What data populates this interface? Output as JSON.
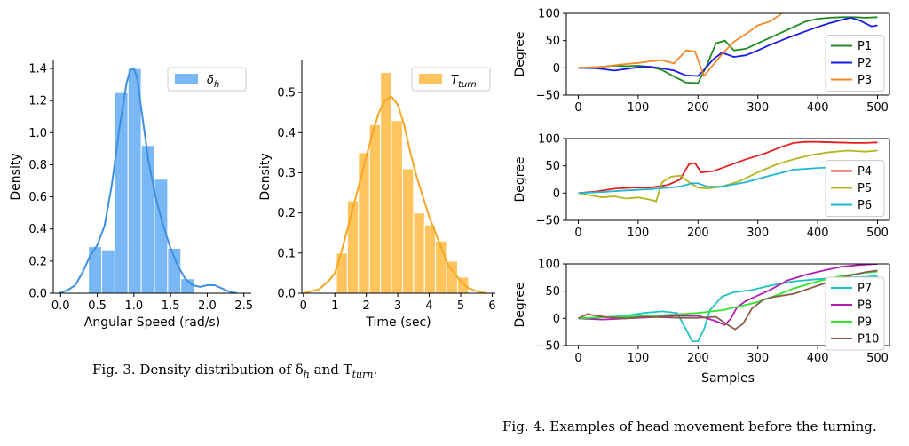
{
  "captions": {
    "fig3": "Fig. 3.  Density distribution of δ",
    "fig3_sub1": "h",
    "fig3_mid": " and T",
    "fig3_sub2": "turn",
    "fig3_end": ".",
    "fig4": "Fig. 4.  Examples of head movement before the turning."
  },
  "colors": {
    "hist_blue": "#7ab8f5",
    "kde_blue": "#3d8fe0",
    "hist_orange": "#ffc45e",
    "kde_orange": "#f5a623"
  },
  "chart_data": [
    {
      "type": "bar",
      "subtype": "histogram-with-kde",
      "legend": "δ",
      "legend_sub": "h",
      "legend_position": "top-right",
      "xlabel": "Angular Speed (rad/s)",
      "ylabel": "Density",
      "xlim": [
        -0.1,
        2.6
      ],
      "ylim": [
        0,
        1.45
      ],
      "xticks": [
        "0.0",
        "0.5",
        "1.0",
        "1.5",
        "2.0",
        "2.5"
      ],
      "xtick_values": [
        0,
        0.5,
        1.0,
        1.5,
        2.0,
        2.5
      ],
      "yticks": [
        "0.0",
        "0.2",
        "0.4",
        "0.6",
        "0.8",
        "1.0",
        "1.2",
        "1.4"
      ],
      "ytick_values": [
        0,
        0.2,
        0.4,
        0.6,
        0.8,
        1.0,
        1.2,
        1.4
      ],
      "bins": [
        {
          "x0": 0.38,
          "x1": 0.56,
          "value": 0.29
        },
        {
          "x0": 0.56,
          "x1": 0.74,
          "value": 0.27
        },
        {
          "x0": 0.74,
          "x1": 0.92,
          "value": 1.25
        },
        {
          "x0": 0.92,
          "x1": 1.1,
          "value": 1.4
        },
        {
          "x0": 1.1,
          "x1": 1.28,
          "value": 0.92
        },
        {
          "x0": 1.28,
          "x1": 1.46,
          "value": 0.71
        },
        {
          "x0": 1.46,
          "x1": 1.64,
          "value": 0.28
        },
        {
          "x0": 1.64,
          "x1": 1.82,
          "value": 0.09
        }
      ],
      "kde": {
        "x": [
          -0.02,
          0.1,
          0.2,
          0.3,
          0.4,
          0.5,
          0.6,
          0.7,
          0.8,
          0.9,
          0.95,
          1.0,
          1.05,
          1.1,
          1.2,
          1.3,
          1.4,
          1.5,
          1.6,
          1.7,
          1.8,
          1.9,
          2.0,
          2.1,
          2.2,
          2.3,
          2.4
        ],
        "y": [
          0.0,
          0.02,
          0.05,
          0.13,
          0.23,
          0.3,
          0.42,
          0.68,
          1.02,
          1.31,
          1.39,
          1.4,
          1.33,
          1.15,
          0.82,
          0.59,
          0.42,
          0.28,
          0.17,
          0.09,
          0.05,
          0.04,
          0.05,
          0.05,
          0.03,
          0.01,
          0.0
        ]
      }
    },
    {
      "type": "bar",
      "subtype": "histogram-with-kde",
      "legend": "T",
      "legend_sub": "turn",
      "legend_position": "top-right",
      "xlabel": "Time (sec)",
      "ylabel": "Density",
      "xlim": [
        -0.05,
        6.1
      ],
      "ylim": [
        0,
        0.58
      ],
      "xticks": [
        "0",
        "1",
        "2",
        "3",
        "4",
        "5",
        "6"
      ],
      "xtick_values": [
        0,
        1,
        2,
        3,
        4,
        5,
        6
      ],
      "yticks": [
        "0.0",
        "0.1",
        "0.2",
        "0.3",
        "0.4",
        "0.5"
      ],
      "ytick_values": [
        0,
        0.1,
        0.2,
        0.3,
        0.4,
        0.5
      ],
      "bins": [
        {
          "x0": 1.05,
          "x1": 1.4,
          "value": 0.1
        },
        {
          "x0": 1.4,
          "x1": 1.75,
          "value": 0.23
        },
        {
          "x0": 1.75,
          "x1": 2.1,
          "value": 0.35
        },
        {
          "x0": 2.1,
          "x1": 2.45,
          "value": 0.42
        },
        {
          "x0": 2.45,
          "x1": 2.8,
          "value": 0.55
        },
        {
          "x0": 2.8,
          "x1": 3.15,
          "value": 0.43
        },
        {
          "x0": 3.15,
          "x1": 3.5,
          "value": 0.31
        },
        {
          "x0": 3.5,
          "x1": 3.85,
          "value": 0.2
        },
        {
          "x0": 3.85,
          "x1": 4.2,
          "value": 0.17
        },
        {
          "x0": 4.2,
          "x1": 4.55,
          "value": 0.13
        },
        {
          "x0": 4.55,
          "x1": 4.9,
          "value": 0.08
        },
        {
          "x0": 4.9,
          "x1": 5.25,
          "value": 0.04
        }
      ],
      "kde": {
        "x": [
          0.0,
          0.5,
          0.8,
          1.0,
          1.2,
          1.4,
          1.6,
          1.8,
          2.0,
          2.2,
          2.4,
          2.6,
          2.8,
          3.0,
          3.2,
          3.4,
          3.6,
          3.8,
          4.0,
          4.2,
          4.4,
          4.6,
          4.8,
          5.0,
          5.2,
          5.4,
          5.6,
          5.8
        ],
        "y": [
          0.0,
          0.01,
          0.03,
          0.05,
          0.1,
          0.16,
          0.22,
          0.28,
          0.34,
          0.4,
          0.45,
          0.48,
          0.49,
          0.47,
          0.42,
          0.35,
          0.29,
          0.24,
          0.19,
          0.15,
          0.11,
          0.07,
          0.05,
          0.03,
          0.015,
          0.008,
          0.003,
          0.0
        ]
      }
    },
    {
      "type": "line",
      "ylabel": "Degree",
      "xlabel": "",
      "xlim": [
        -20,
        520
      ],
      "ylim": [
        -50,
        100
      ],
      "xticks": [
        "0",
        "100",
        "200",
        "300",
        "400",
        "500"
      ],
      "xtick_values": [
        0,
        100,
        200,
        300,
        400,
        500
      ],
      "yticks": [
        "−50",
        "0",
        "50",
        "100"
      ],
      "ytick_values": [
        -50,
        0,
        50,
        100
      ],
      "legend_position": "right",
      "series": [
        {
          "name": "P1",
          "color": "#1e8a1e",
          "x": [
            0,
            30,
            60,
            80,
            100,
            120,
            140,
            160,
            180,
            200,
            215,
            230,
            245,
            260,
            280,
            300,
            320,
            350,
            380,
            400,
            420,
            440,
            460,
            480,
            500
          ],
          "y": [
            0,
            1,
            4,
            3,
            4,
            2,
            -4,
            -16,
            -27,
            -28,
            5,
            45,
            50,
            32,
            35,
            45,
            55,
            70,
            85,
            90,
            92,
            93,
            93,
            92,
            93
          ]
        },
        {
          "name": "P2",
          "color": "#1a1ae6",
          "x": [
            0,
            30,
            60,
            80,
            100,
            120,
            140,
            160,
            180,
            200,
            210,
            225,
            240,
            260,
            280,
            300,
            320,
            350,
            380,
            400,
            420,
            440,
            455,
            470,
            490,
            500
          ],
          "y": [
            0,
            -1,
            -5,
            -2,
            1,
            2,
            -1,
            -5,
            -14,
            -15,
            -4,
            15,
            28,
            20,
            23,
            32,
            42,
            55,
            67,
            75,
            82,
            88,
            92,
            87,
            76,
            78
          ]
        },
        {
          "name": "P3",
          "color": "#f08a2a",
          "x": [
            0,
            40,
            70,
            100,
            120,
            140,
            160,
            180,
            195,
            210,
            225,
            240,
            260,
            280,
            300,
            320,
            335,
            340
          ],
          "y": [
            0,
            2,
            6,
            9,
            12,
            14,
            8,
            32,
            30,
            -15,
            5,
            25,
            48,
            62,
            78,
            85,
            96,
            100
          ]
        }
      ]
    },
    {
      "type": "line",
      "ylabel": "Degree",
      "xlabel": "",
      "xlim": [
        -20,
        520
      ],
      "ylim": [
        -50,
        100
      ],
      "xticks": [
        "0",
        "100",
        "200",
        "300",
        "400",
        "500"
      ],
      "xtick_values": [
        0,
        100,
        200,
        300,
        400,
        500
      ],
      "yticks": [
        "−50",
        "0",
        "50",
        "100"
      ],
      "ytick_values": [
        -50,
        0,
        50,
        100
      ],
      "legend_position": "right",
      "series": [
        {
          "name": "P4",
          "color": "#e61e1e",
          "x": [
            0,
            30,
            60,
            90,
            120,
            150,
            170,
            185,
            195,
            205,
            225,
            250,
            280,
            310,
            340,
            360,
            380,
            400,
            430,
            460,
            480,
            500
          ],
          "y": [
            0,
            3,
            8,
            10,
            10,
            15,
            25,
            53,
            55,
            38,
            40,
            50,
            62,
            72,
            85,
            92,
            94,
            94,
            93,
            92,
            92,
            93
          ]
        },
        {
          "name": "P5",
          "color": "#b5b51e",
          "x": [
            0,
            20,
            40,
            60,
            80,
            100,
            120,
            130,
            140,
            155,
            170,
            185,
            200,
            215,
            240,
            270,
            300,
            330,
            360,
            390,
            420,
            450,
            480,
            500
          ],
          "y": [
            0,
            -4,
            -8,
            -6,
            -10,
            -8,
            -12,
            -15,
            20,
            30,
            32,
            20,
            10,
            8,
            12,
            22,
            38,
            52,
            62,
            70,
            75,
            78,
            76,
            78
          ]
        },
        {
          "name": "P6",
          "color": "#1eb8d4",
          "x": [
            0,
            40,
            80,
            120,
            150,
            170,
            190,
            200,
            215,
            240,
            280,
            320,
            360,
            400,
            440,
            470,
            500
          ],
          "y": [
            0,
            2,
            5,
            7,
            10,
            12,
            18,
            18,
            12,
            12,
            20,
            32,
            43,
            46,
            48,
            50,
            48
          ]
        }
      ]
    },
    {
      "type": "line",
      "ylabel": "Degree",
      "xlabel": "Samples",
      "xlim": [
        -20,
        520
      ],
      "ylim": [
        -50,
        100
      ],
      "xticks": [
        "0",
        "100",
        "200",
        "300",
        "400",
        "500"
      ],
      "xtick_values": [
        0,
        100,
        200,
        300,
        400,
        500
      ],
      "yticks": [
        "−50",
        "0",
        "50",
        "100"
      ],
      "ytick_values": [
        -50,
        0,
        50,
        100
      ],
      "legend_position": "right",
      "series": [
        {
          "name": "P7",
          "color": "#1ec4c4",
          "x": [
            0,
            40,
            80,
            110,
            140,
            165,
            180,
            190,
            200,
            210,
            220,
            240,
            260,
            290,
            320,
            360,
            400,
            440,
            480,
            500
          ],
          "y": [
            0,
            2,
            5,
            10,
            13,
            10,
            -20,
            -42,
            -42,
            -20,
            15,
            40,
            48,
            52,
            60,
            68,
            72,
            75,
            76,
            78
          ]
        },
        {
          "name": "P8",
          "color": "#b21eb2",
          "x": [
            0,
            40,
            80,
            120,
            160,
            200,
            230,
            245,
            255,
            265,
            280,
            300,
            320,
            350,
            380,
            410,
            440,
            470,
            500
          ],
          "y": [
            0,
            -2,
            0,
            2,
            5,
            5,
            -5,
            -12,
            0,
            20,
            32,
            42,
            52,
            70,
            80,
            88,
            95,
            98,
            100
          ]
        },
        {
          "name": "P9",
          "color": "#2ee62e",
          "x": [
            0,
            40,
            80,
            120,
            160,
            200,
            240,
            270,
            300,
            330,
            360,
            400,
            440,
            480,
            500
          ],
          "y": [
            0,
            2,
            3,
            5,
            7,
            10,
            15,
            22,
            30,
            42,
            55,
            68,
            78,
            84,
            86
          ]
        },
        {
          "name": "P10",
          "color": "#8a5c4a",
          "x": [
            0,
            15,
            30,
            50,
            80,
            110,
            140,
            170,
            200,
            230,
            250,
            262,
            275,
            290,
            310,
            330,
            360,
            400,
            440,
            480,
            500
          ],
          "y": [
            0,
            8,
            5,
            2,
            0,
            3,
            2,
            1,
            1,
            3,
            -12,
            -20,
            -10,
            18,
            35,
            40,
            45,
            60,
            75,
            85,
            88
          ]
        }
      ]
    }
  ]
}
